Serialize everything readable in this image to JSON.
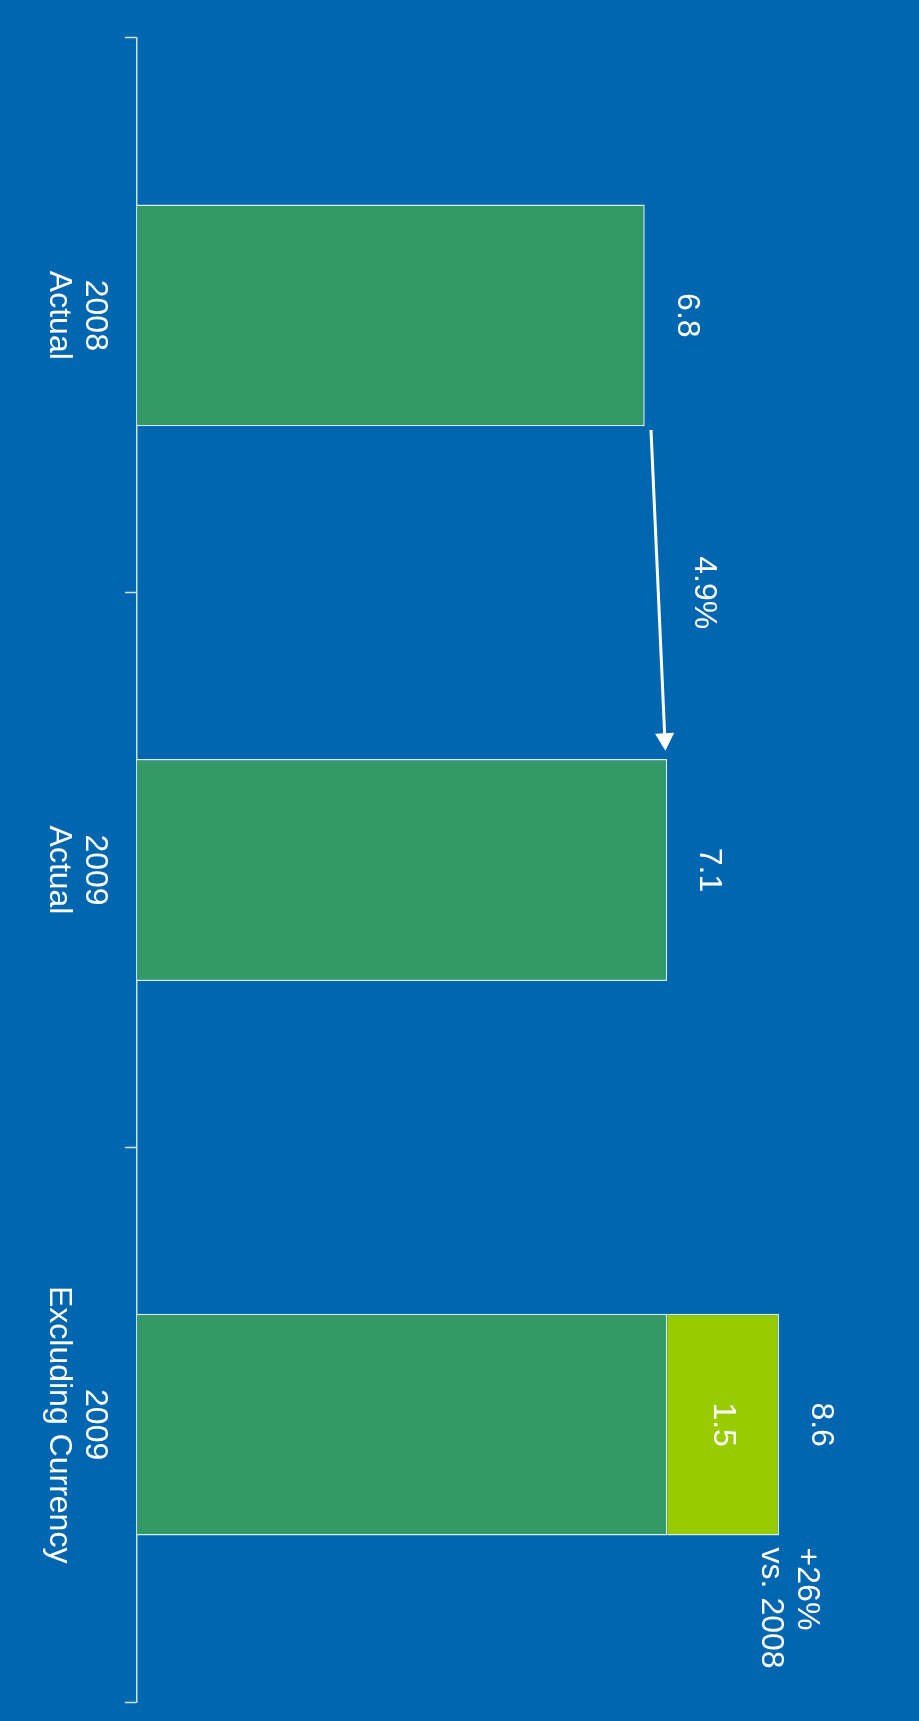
{
  "chart_data": {
    "type": "bar",
    "orientation": "horizontal",
    "stacked": true,
    "categories": [
      "2008\nActual",
      "2009\nActual",
      "2009\nExcluding Currency"
    ],
    "series": [
      {
        "color": "#339966",
        "values": [
          6.8,
          7.1,
          7.1
        ]
      },
      {
        "color": "#99cc00",
        "values": [
          null,
          null,
          1.5
        ],
        "value_labels": [
          null,
          null,
          "1.5"
        ]
      }
    ],
    "totals": [
      "6.8",
      "7.1",
      "8.6"
    ],
    "annotations": [
      "4.9%",
      "+26%\nvs. 2008"
    ],
    "grid": false,
    "legend": false
  }
}
